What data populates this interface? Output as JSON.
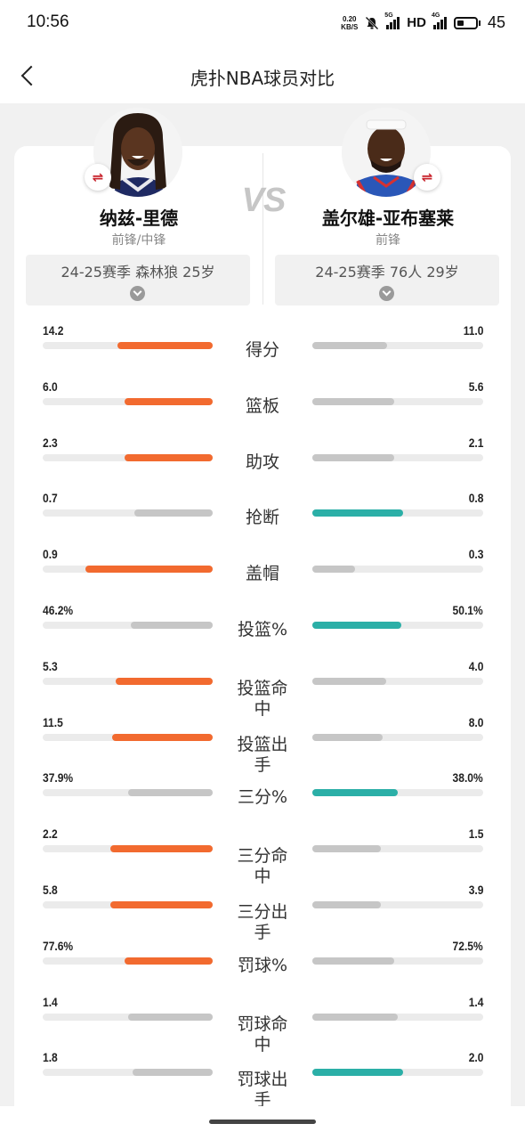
{
  "status": {
    "time": "10:56",
    "net_speed_value": "0.20",
    "net_speed_unit": "KB/S",
    "sig1": "5G",
    "hd": "HD",
    "sig2": "4G",
    "battery": "45"
  },
  "nav": {
    "title": "虎扑NBA球员对比"
  },
  "vs": "VS",
  "left": {
    "name": "纳兹-里德",
    "position": "前锋/中锋",
    "season": "24-25赛季 森林狼 25岁"
  },
  "right": {
    "name": "盖尔雄-亚布塞莱",
    "position": "前锋",
    "season": "24-25赛季 76人 29岁"
  },
  "colors": {
    "left_win": "#f26a2f",
    "right_win": "#2bafa7",
    "lose": "#c6c6c6",
    "track": "#ebebeb"
  },
  "stats": [
    {
      "label": "得分",
      "left": "14.2",
      "right": "11.0",
      "left_fill": 0.56,
      "right_fill": 0.44,
      "winner": "left"
    },
    {
      "label": "篮板",
      "left": "6.0",
      "right": "5.6",
      "left_fill": 0.52,
      "right_fill": 0.48,
      "winner": "left"
    },
    {
      "label": "助攻",
      "left": "2.3",
      "right": "2.1",
      "left_fill": 0.52,
      "right_fill": 0.48,
      "winner": "left"
    },
    {
      "label": "抢断",
      "left": "0.7",
      "right": "0.8",
      "left_fill": 0.46,
      "right_fill": 0.53,
      "winner": "right"
    },
    {
      "label": "盖帽",
      "left": "0.9",
      "right": "0.3",
      "left_fill": 0.75,
      "right_fill": 0.25,
      "winner": "left"
    },
    {
      "label": "投篮%",
      "left": "46.2%",
      "right": "50.1%",
      "left_fill": 0.48,
      "right_fill": 0.52,
      "winner": "right"
    },
    {
      "label": "投篮命中",
      "left": "5.3",
      "right": "4.0",
      "left_fill": 0.57,
      "right_fill": 0.43,
      "winner": "left"
    },
    {
      "label": "投篮出手",
      "left": "11.5",
      "right": "8.0",
      "left_fill": 0.59,
      "right_fill": 0.41,
      "winner": "left"
    },
    {
      "label": "三分%",
      "left": "37.9%",
      "right": "38.0%",
      "left_fill": 0.5,
      "right_fill": 0.5,
      "winner": "right"
    },
    {
      "label": "三分命中",
      "left": "2.2",
      "right": "1.5",
      "left_fill": 0.6,
      "right_fill": 0.4,
      "winner": "left"
    },
    {
      "label": "三分出手",
      "left": "5.8",
      "right": "3.9",
      "left_fill": 0.6,
      "right_fill": 0.4,
      "winner": "left"
    },
    {
      "label": "罚球%",
      "left": "77.6%",
      "right": "72.5%",
      "left_fill": 0.52,
      "right_fill": 0.48,
      "winner": "left"
    },
    {
      "label": "罚球命中",
      "left": "1.4",
      "right": "1.4",
      "left_fill": 0.5,
      "right_fill": 0.5,
      "winner": "none"
    },
    {
      "label": "罚球出手",
      "left": "1.8",
      "right": "2.0",
      "left_fill": 0.47,
      "right_fill": 0.53,
      "winner": "right"
    }
  ]
}
